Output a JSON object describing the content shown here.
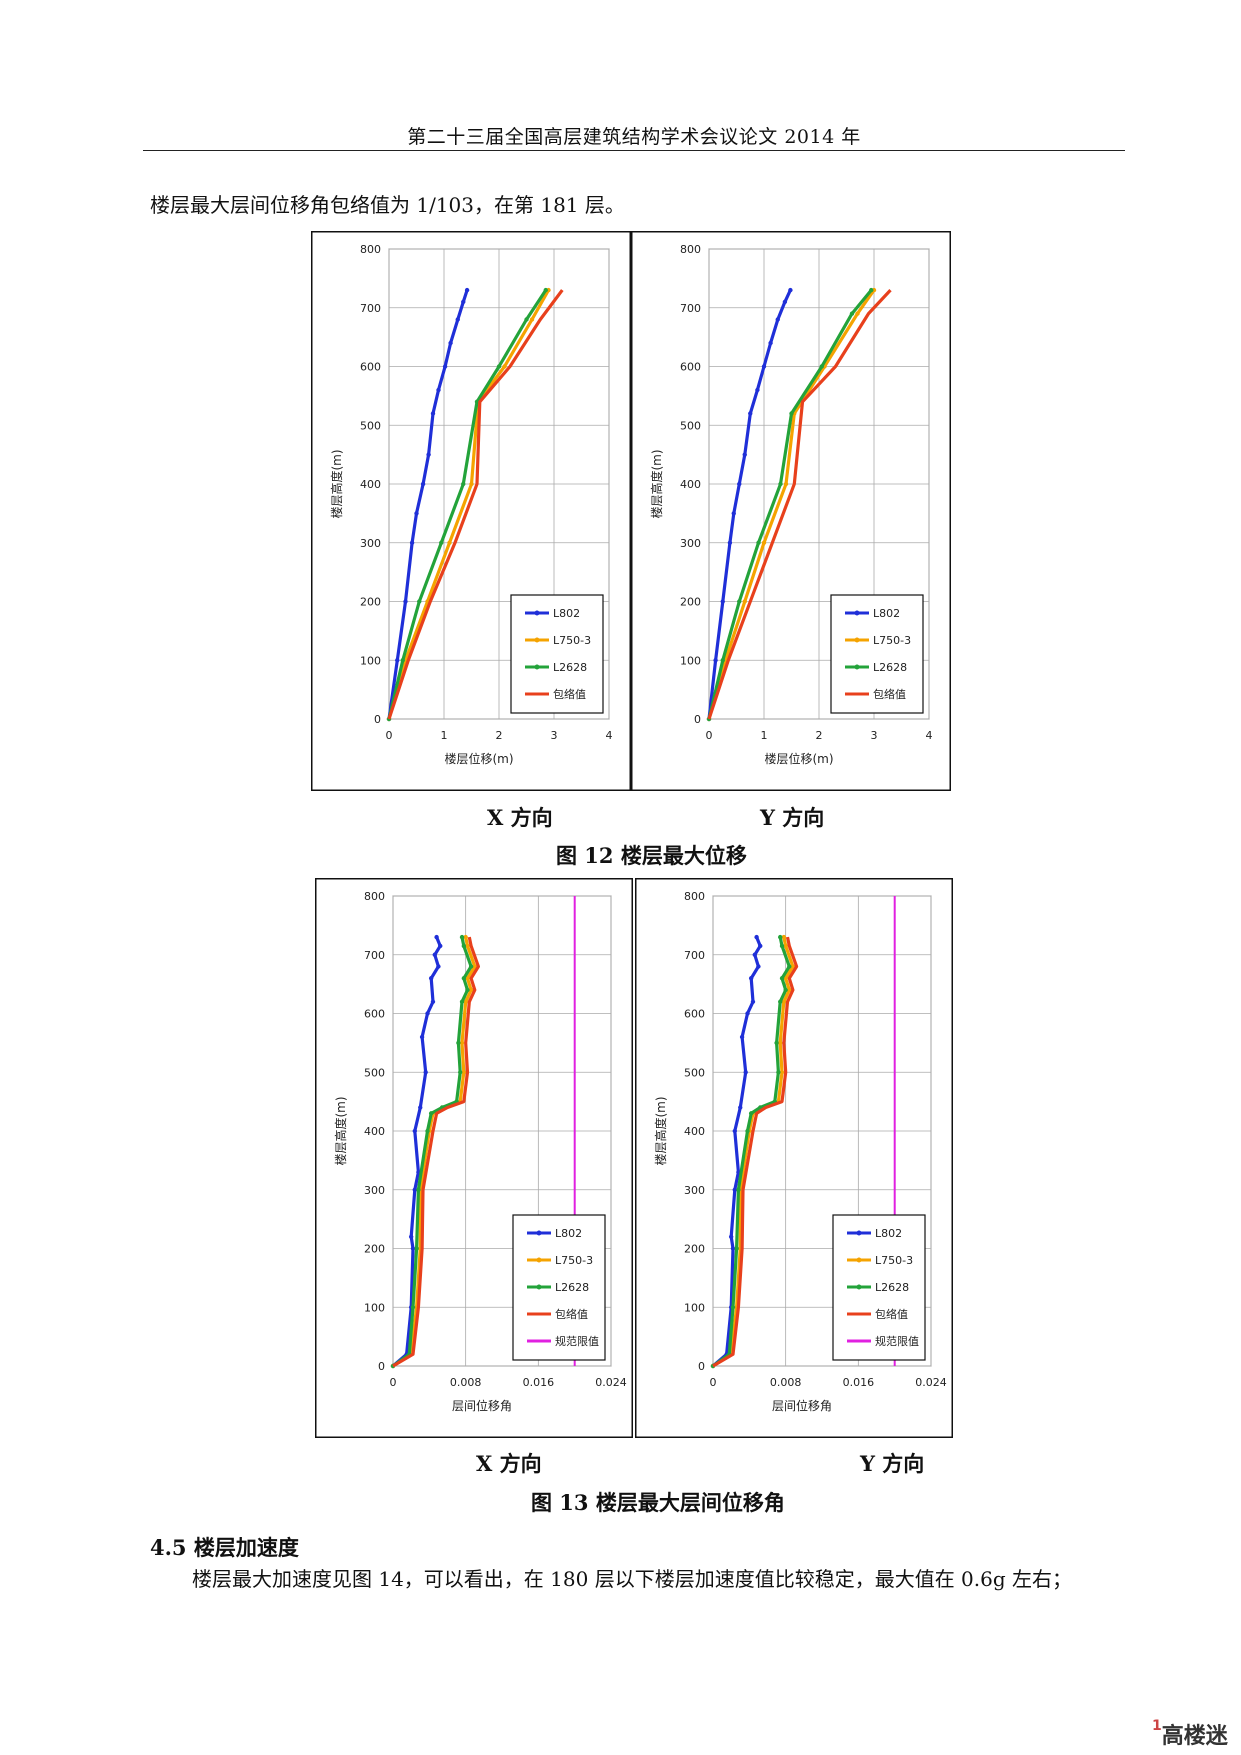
{
  "header": {
    "title": "第二十三届全国高层建筑结构学术会议论文 2014 年"
  },
  "para1": "楼层最大层间位移角包络值为 1/103，在第 181 层。",
  "fig12": {
    "caption": "图 12    楼层最大位移",
    "x_label": "X 方向",
    "y_label": "Y 方向"
  },
  "fig13": {
    "caption": "图 13  楼层最大层间位移角",
    "x_label": "X 方向",
    "y_label": "Y 方向"
  },
  "section": {
    "heading": "4.5 楼层加速度"
  },
  "para2": "楼层最大加速度见图 14，可以看出，在 180 层以下楼层加速度值比较稳定，最大值在 0.6g 左右；",
  "watermark": {
    "one": "1",
    "text": "高楼迷"
  },
  "colors": {
    "L802": "#1f2fd8",
    "L750_3": "#f5a300",
    "L2628": "#23a33a",
    "envelope": "#e8401c",
    "limit": "#e020e0"
  },
  "chart_data": [
    {
      "id": "fig12-x",
      "type": "line",
      "xlabel": "楼层位移(m)",
      "ylabel": "楼层高度(m)",
      "xlim": [
        0,
        4
      ],
      "ylim": [
        0,
        800
      ],
      "xticks": [
        "0",
        "1",
        "2",
        "3",
        "4"
      ],
      "yticks": [
        "0",
        "100",
        "200",
        "300",
        "400",
        "500",
        "600",
        "700",
        "800"
      ],
      "grid": true,
      "legend_position": "bottom-right",
      "series": [
        {
          "name": "L802",
          "color": "#1f2fd8",
          "x": [
            0,
            0.15,
            0.3,
            0.42,
            0.5,
            0.62,
            0.72,
            0.8,
            0.9,
            1.02,
            1.12,
            1.25,
            1.35,
            1.42
          ],
          "y": [
            0,
            100,
            200,
            300,
            350,
            400,
            450,
            520,
            560,
            600,
            640,
            680,
            710,
            730
          ]
        },
        {
          "name": "L750-3",
          "color": "#f5a300",
          "x": [
            0,
            0.3,
            0.7,
            1.1,
            1.5,
            1.62,
            2.1,
            2.6,
            2.9
          ],
          "y": [
            0,
            100,
            200,
            300,
            400,
            540,
            600,
            680,
            730
          ]
        },
        {
          "name": "L2628",
          "color": "#23a33a",
          "x": [
            0,
            0.25,
            0.55,
            0.95,
            1.35,
            1.6,
            2.0,
            2.5,
            2.85
          ],
          "y": [
            0,
            100,
            200,
            300,
            400,
            540,
            600,
            680,
            730
          ]
        },
        {
          "name": "包络值",
          "color": "#e8401c",
          "x": [
            0,
            0.35,
            0.75,
            1.2,
            1.6,
            1.65,
            2.2,
            2.75,
            3.15
          ],
          "y": [
            0,
            100,
            200,
            300,
            400,
            540,
            600,
            680,
            730
          ]
        }
      ]
    },
    {
      "id": "fig12-y",
      "type": "line",
      "xlabel": "楼层位移(m)",
      "ylabel": "楼层高度(m)",
      "xlim": [
        0,
        4
      ],
      "ylim": [
        0,
        800
      ],
      "xticks": [
        "0",
        "1",
        "2",
        "3",
        "4"
      ],
      "yticks": [
        "0",
        "100",
        "200",
        "300",
        "400",
        "500",
        "600",
        "700",
        "800"
      ],
      "grid": true,
      "legend_position": "bottom-right",
      "series": [
        {
          "name": "L802",
          "color": "#1f2fd8",
          "x": [
            0,
            0.12,
            0.25,
            0.38,
            0.45,
            0.55,
            0.65,
            0.75,
            0.88,
            1.0,
            1.12,
            1.25,
            1.38,
            1.48
          ],
          "y": [
            0,
            100,
            200,
            300,
            350,
            400,
            450,
            520,
            560,
            600,
            640,
            680,
            710,
            730
          ]
        },
        {
          "name": "L750-3",
          "color": "#f5a300",
          "x": [
            0,
            0.3,
            0.65,
            1.0,
            1.4,
            1.55,
            2.1,
            2.7,
            3.0
          ],
          "y": [
            0,
            100,
            200,
            300,
            400,
            520,
            600,
            690,
            730
          ]
        },
        {
          "name": "L2628",
          "color": "#23a33a",
          "x": [
            0,
            0.25,
            0.55,
            0.9,
            1.3,
            1.5,
            2.05,
            2.6,
            2.95
          ],
          "y": [
            0,
            100,
            200,
            300,
            400,
            520,
            600,
            690,
            730
          ]
        },
        {
          "name": "包络值",
          "color": "#e8401c",
          "x": [
            0,
            0.35,
            0.75,
            1.15,
            1.55,
            1.7,
            2.3,
            2.9,
            3.3
          ],
          "y": [
            0,
            100,
            200,
            300,
            400,
            540,
            600,
            690,
            730
          ]
        }
      ]
    },
    {
      "id": "fig13-x",
      "type": "line",
      "xlabel": "层间位移角",
      "ylabel": "楼层高度(m)",
      "xlim": [
        0,
        0.024
      ],
      "ylim": [
        0,
        800
      ],
      "xticks": [
        "0",
        "0.008",
        "0.016",
        "0.024"
      ],
      "yticks": [
        "0",
        "100",
        "200",
        "300",
        "400",
        "500",
        "600",
        "700",
        "800"
      ],
      "grid": true,
      "legend_position": "bottom-right",
      "series": [
        {
          "name": "L802",
          "color": "#1f2fd8",
          "x": [
            0,
            0.0015,
            0.002,
            0.0022,
            0.002,
            0.0024,
            0.0028,
            0.0024,
            0.003,
            0.0036,
            0.0032,
            0.0038,
            0.0044,
            0.0042,
            0.005,
            0.0046,
            0.0052,
            0.0048
          ],
          "y": [
            0,
            20,
            100,
            200,
            220,
            300,
            330,
            400,
            440,
            500,
            560,
            600,
            620,
            660,
            680,
            700,
            715,
            730
          ]
        },
        {
          "name": "L750-3",
          "color": "#f5a300",
          "x": [
            0,
            0.002,
            0.0026,
            0.003,
            0.003,
            0.004,
            0.0044,
            0.0056,
            0.0074,
            0.0078,
            0.0076,
            0.008,
            0.0086,
            0.0082,
            0.009,
            0.0082,
            0.008
          ],
          "y": [
            0,
            20,
            100,
            200,
            300,
            400,
            430,
            440,
            450,
            500,
            550,
            620,
            640,
            660,
            680,
            715,
            730
          ]
        },
        {
          "name": "L2628",
          "color": "#23a33a",
          "x": [
            0,
            0.0018,
            0.0022,
            0.0026,
            0.0028,
            0.0038,
            0.0042,
            0.0054,
            0.007,
            0.0074,
            0.0072,
            0.0076,
            0.0082,
            0.0078,
            0.0086,
            0.0078,
            0.0076
          ],
          "y": [
            0,
            20,
            100,
            200,
            300,
            400,
            430,
            440,
            450,
            500,
            550,
            620,
            640,
            660,
            680,
            715,
            730
          ]
        },
        {
          "name": "包络值",
          "color": "#e8401c",
          "x": [
            0,
            0.0022,
            0.0028,
            0.0032,
            0.0033,
            0.0044,
            0.0048,
            0.006,
            0.0078,
            0.0082,
            0.008,
            0.0084,
            0.009,
            0.0086,
            0.0094,
            0.0086,
            0.0084
          ],
          "y": [
            0,
            20,
            100,
            200,
            300,
            400,
            430,
            440,
            450,
            500,
            550,
            620,
            640,
            660,
            680,
            715,
            730
          ]
        },
        {
          "name": "规范限值",
          "color": "#e020e0",
          "x": [
            0.02,
            0.02
          ],
          "y": [
            0,
            800
          ]
        }
      ]
    },
    {
      "id": "fig13-y",
      "type": "line",
      "xlabel": "层间位移角",
      "ylabel": "楼层高度(m)",
      "xlim": [
        0,
        0.024
      ],
      "ylim": [
        0,
        800
      ],
      "xticks": [
        "0",
        "0.008",
        "0.016",
        "0.024"
      ],
      "yticks": [
        "0",
        "100",
        "200",
        "300",
        "400",
        "500",
        "600",
        "700",
        "800"
      ],
      "grid": true,
      "legend_position": "bottom-right",
      "series": [
        {
          "name": "L802",
          "color": "#1f2fd8",
          "x": [
            0,
            0.0015,
            0.002,
            0.0022,
            0.002,
            0.0024,
            0.0028,
            0.0024,
            0.003,
            0.0036,
            0.0032,
            0.0038,
            0.0044,
            0.0042,
            0.005,
            0.0046,
            0.0052,
            0.0048
          ],
          "y": [
            0,
            20,
            100,
            200,
            220,
            300,
            330,
            400,
            440,
            500,
            560,
            600,
            620,
            660,
            680,
            700,
            715,
            730
          ]
        },
        {
          "name": "L750-3",
          "color": "#f5a300",
          "x": [
            0,
            0.002,
            0.0026,
            0.003,
            0.003,
            0.004,
            0.0044,
            0.0056,
            0.0072,
            0.0076,
            0.0074,
            0.0078,
            0.0084,
            0.008,
            0.0088,
            0.008,
            0.0078
          ],
          "y": [
            0,
            20,
            100,
            200,
            300,
            400,
            430,
            440,
            450,
            500,
            550,
            620,
            640,
            660,
            680,
            715,
            730
          ]
        },
        {
          "name": "L2628",
          "color": "#23a33a",
          "x": [
            0,
            0.0018,
            0.0022,
            0.0026,
            0.0028,
            0.0038,
            0.0042,
            0.0052,
            0.0068,
            0.0072,
            0.007,
            0.0074,
            0.008,
            0.0076,
            0.0084,
            0.0076,
            0.0074
          ],
          "y": [
            0,
            20,
            100,
            200,
            300,
            400,
            430,
            440,
            450,
            500,
            550,
            620,
            640,
            660,
            680,
            715,
            730
          ]
        },
        {
          "name": "包络值",
          "color": "#e8401c",
          "x": [
            0,
            0.0022,
            0.0028,
            0.0032,
            0.0033,
            0.0044,
            0.0048,
            0.0058,
            0.0076,
            0.008,
            0.0078,
            0.0082,
            0.0088,
            0.0084,
            0.0092,
            0.0084,
            0.0082
          ],
          "y": [
            0,
            20,
            100,
            200,
            300,
            400,
            430,
            440,
            450,
            500,
            550,
            620,
            640,
            660,
            680,
            715,
            730
          ]
        },
        {
          "name": "规范限值",
          "color": "#e020e0",
          "x": [
            0.02,
            0.02
          ],
          "y": [
            0,
            800
          ]
        }
      ]
    }
  ]
}
